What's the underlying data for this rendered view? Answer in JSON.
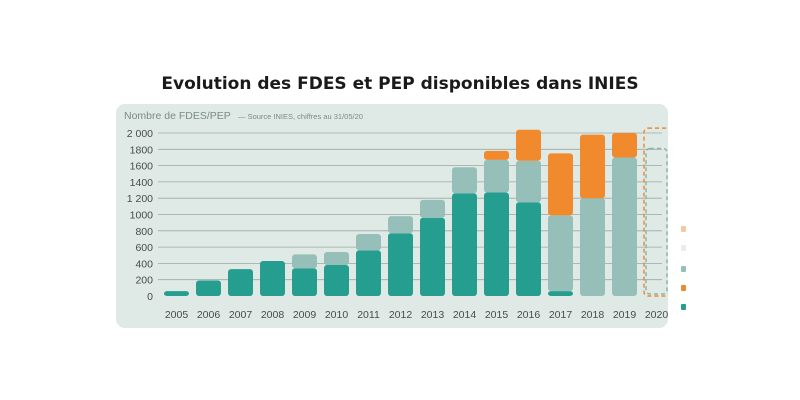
{
  "chart_data": {
    "type": "bar",
    "title": "Evolution des FDES et PEP disponibles dans INIES",
    "ylabel": "Nombre de FDES/PEP",
    "source": "— Source INIES, chiffres au 31/05/20",
    "ylim": [
      0,
      2000
    ],
    "yticks": [
      "0",
      "200",
      "400",
      "600",
      "800",
      "1000",
      "1 200",
      "1400",
      "1600",
      "1800",
      "2 000"
    ],
    "yticks_values": [
      0,
      200,
      400,
      600,
      800,
      1000,
      1200,
      1400,
      1600,
      1800,
      2000
    ],
    "categories": [
      "2005",
      "2006",
      "2007",
      "2008",
      "2009",
      "2010",
      "2011",
      "2012",
      "2013",
      "2014",
      "2015",
      "2016",
      "2017",
      "2018",
      "2019",
      "2020"
    ],
    "series": [
      {
        "name": "teal",
        "color": "#259e90",
        "values": [
          60,
          190,
          330,
          430,
          340,
          380,
          560,
          770,
          960,
          1260,
          1270,
          1150,
          60,
          0,
          0,
          0
        ]
      },
      {
        "name": "light",
        "color": "#97bfba",
        "values": [
          0,
          0,
          0,
          0,
          170,
          160,
          200,
          210,
          220,
          320,
          400,
          510,
          930,
          1200,
          1700,
          0
        ]
      },
      {
        "name": "orange",
        "color": "#f08a2c",
        "values": [
          0,
          0,
          0,
          0,
          0,
          0,
          0,
          0,
          0,
          0,
          110,
          380,
          760,
          780,
          300,
          0
        ]
      }
    ],
    "projection_2020": {
      "dashed_teal": 1810,
      "dashed_orange": 2060
    },
    "legend_colors": [
      "#f3c9a4",
      "#e8ecec",
      "#97bfba",
      "#f08a2c",
      "#259e90"
    ]
  }
}
